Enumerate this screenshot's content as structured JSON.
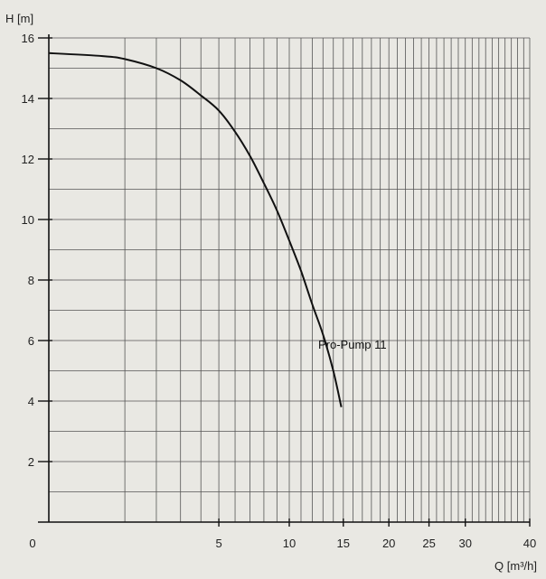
{
  "chart_data": {
    "type": "line",
    "title": "",
    "ylabel": "H [m]",
    "xlabel": "Q [m³/h]",
    "x_scale": "sqrt",
    "xlim": [
      0,
      40
    ],
    "ylim": [
      0,
      16
    ],
    "grid": true,
    "x_ticks": [
      0,
      5,
      10,
      15,
      20,
      25,
      30,
      40
    ],
    "x_tick_labels": [
      "0",
      "5",
      "10",
      "15",
      "20",
      "25",
      "30",
      "40"
    ],
    "x_gridlines": [
      1,
      2,
      3,
      4,
      5,
      6,
      7,
      8,
      9,
      10,
      11,
      12,
      13,
      14,
      15,
      16,
      17,
      18,
      19,
      20,
      21,
      22,
      23,
      24,
      25,
      26,
      27,
      28,
      29,
      30,
      31,
      32,
      33,
      34,
      35,
      36,
      37,
      38,
      39,
      40
    ],
    "y_ticks": [
      2,
      4,
      6,
      8,
      10,
      12,
      14,
      16
    ],
    "y_tick_labels": [
      "2",
      "4",
      "6",
      "8",
      "10",
      "12",
      "14",
      "16"
    ],
    "y_gridlines": [
      1,
      2,
      3,
      4,
      5,
      6,
      7,
      8,
      9,
      10,
      11,
      12,
      13,
      14,
      15,
      16
    ],
    "series": [
      {
        "name": "Pro-Pump 11",
        "x": [
          0,
          0.5,
          1,
          2,
          3,
          4,
          5,
          6,
          7,
          8,
          9,
          10,
          11,
          12,
          13,
          14,
          14.8
        ],
        "y": [
          15.5,
          15.4,
          15.3,
          15.0,
          14.6,
          14.1,
          13.6,
          12.9,
          12.1,
          11.2,
          10.3,
          9.3,
          8.3,
          7.2,
          6.2,
          5.0,
          3.8
        ]
      }
    ]
  }
}
